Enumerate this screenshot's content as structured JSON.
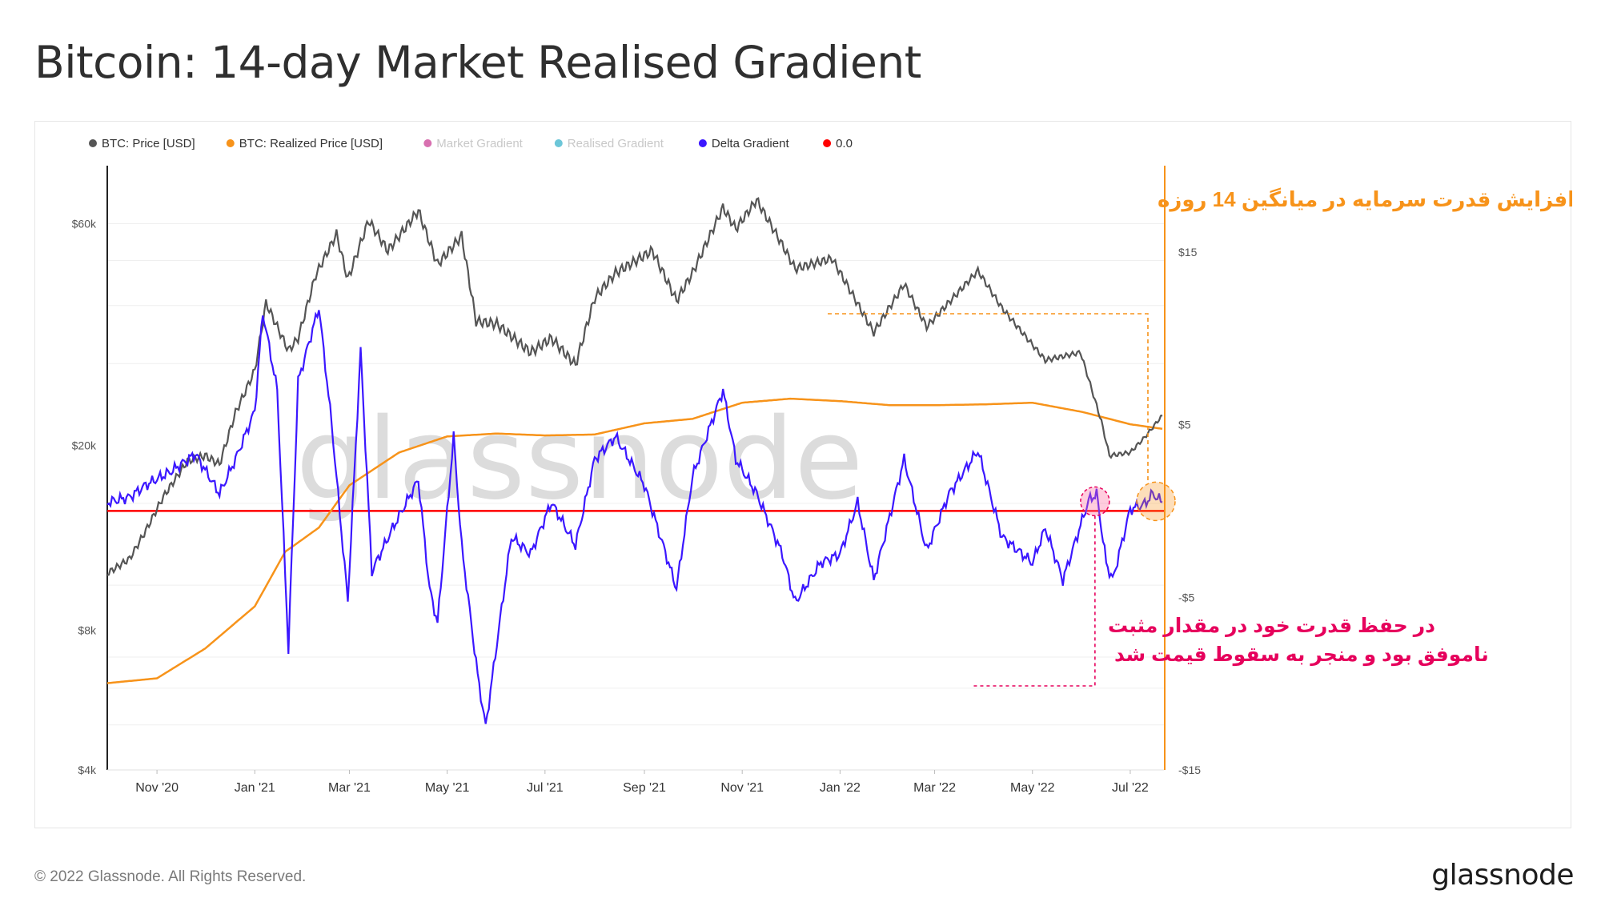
{
  "title": "Bitcoin: 14-day Market Realised Gradient",
  "footer": {
    "copyright": "© 2022 Glassnode. All Rights Reserved.",
    "logo": "glassnode"
  },
  "chart_data": {
    "type": "line",
    "title": "Bitcoin: 14-day Market Realised Gradient",
    "watermark": "glassnode",
    "legend": [
      {
        "name": "BTC: Price [USD]",
        "color": "#555555",
        "muted": false
      },
      {
        "name": "BTC: Realized Price [USD]",
        "color": "#f7931a",
        "muted": false
      },
      {
        "name": "Market Gradient",
        "color": "#d870b0",
        "muted": true
      },
      {
        "name": "Realised Gradient",
        "color": "#6cc6d8",
        "muted": true
      },
      {
        "name": "Delta Gradient",
        "color": "#3b17ff",
        "muted": false
      },
      {
        "name": "0.0",
        "color": "#ff0000",
        "muted": false
      }
    ],
    "x_range": [
      "2020-10-01",
      "2022-07-22"
    ],
    "x_ticks": [
      {
        "label": "Nov '20",
        "date": "2020-11-01"
      },
      {
        "label": "Jan '21",
        "date": "2021-01-01"
      },
      {
        "label": "Mar '21",
        "date": "2021-03-01"
      },
      {
        "label": "May '21",
        "date": "2021-05-01"
      },
      {
        "label": "Jul '21",
        "date": "2021-07-01"
      },
      {
        "label": "Sep '21",
        "date": "2021-09-01"
      },
      {
        "label": "Nov '21",
        "date": "2021-11-01"
      },
      {
        "label": "Jan '22",
        "date": "2022-01-01"
      },
      {
        "label": "Mar '22",
        "date": "2022-03-01"
      },
      {
        "label": "May '22",
        "date": "2022-05-01"
      },
      {
        "label": "Jul '22",
        "date": "2022-07-01"
      }
    ],
    "y_left": {
      "scale": "log",
      "range": [
        4000,
        80000
      ],
      "ticks": [
        {
          "label": "$4k",
          "value": 4000
        },
        {
          "label": "$8k",
          "value": 8000
        },
        {
          "label": "$20k",
          "value": 20000
        },
        {
          "label": "$60k",
          "value": 60000
        }
      ]
    },
    "y_right": {
      "scale": "linear",
      "range": [
        -15,
        20
      ],
      "ticks": [
        {
          "label": "$15",
          "value": 15
        },
        {
          "label": "$5",
          "value": 5
        },
        {
          "label": "-$5",
          "value": -5
        },
        {
          "label": "-$15",
          "value": -15
        }
      ]
    },
    "series": [
      {
        "name": "BTC: Price [USD]",
        "axis": "left",
        "points": [
          [
            "2020-10-01",
            10600
          ],
          [
            "2020-10-15",
            11400
          ],
          [
            "2020-10-25",
            13100
          ],
          [
            "2020-11-05",
            15500
          ],
          [
            "2020-11-20",
            18500
          ],
          [
            "2020-12-01",
            19000
          ],
          [
            "2020-12-10",
            18200
          ],
          [
            "2020-12-20",
            23500
          ],
          [
            "2021-01-01",
            29000
          ],
          [
            "2021-01-08",
            40500
          ],
          [
            "2021-01-15",
            36000
          ],
          [
            "2021-01-22",
            32000
          ],
          [
            "2021-01-28",
            34000
          ],
          [
            "2021-02-08",
            46500
          ],
          [
            "2021-02-21",
            57000
          ],
          [
            "2021-02-28",
            45500
          ],
          [
            "2021-03-13",
            61000
          ],
          [
            "2021-03-25",
            52500
          ],
          [
            "2021-04-13",
            64000
          ],
          [
            "2021-04-25",
            49000
          ],
          [
            "2021-05-10",
            56500
          ],
          [
            "2021-05-19",
            37000
          ],
          [
            "2021-06-01",
            36500
          ],
          [
            "2021-06-22",
            31700
          ],
          [
            "2021-07-05",
            34000
          ],
          [
            "2021-07-20",
            29800
          ],
          [
            "2021-08-01",
            41500
          ],
          [
            "2021-08-14",
            47000
          ],
          [
            "2021-09-06",
            52500
          ],
          [
            "2021-09-21",
            41000
          ],
          [
            "2021-10-01",
            47000
          ],
          [
            "2021-10-20",
            65000
          ],
          [
            "2021-10-28",
            58500
          ],
          [
            "2021-11-10",
            67500
          ],
          [
            "2021-11-26",
            54000
          ],
          [
            "2021-12-04",
            48000
          ],
          [
            "2021-12-27",
            50500
          ],
          [
            "2022-01-10",
            41500
          ],
          [
            "2022-01-22",
            35000
          ],
          [
            "2022-02-10",
            44500
          ],
          [
            "2022-02-24",
            36000
          ],
          [
            "2022-03-28",
            47500
          ],
          [
            "2022-04-12",
            39500
          ],
          [
            "2022-05-09",
            30500
          ],
          [
            "2022-05-31",
            31700
          ],
          [
            "2022-06-13",
            22500
          ],
          [
            "2022-06-18",
            19000
          ],
          [
            "2022-07-01",
            19300
          ],
          [
            "2022-07-10",
            20800
          ],
          [
            "2022-07-21",
            23200
          ]
        ]
      },
      {
        "name": "BTC: Realized Price [USD]",
        "axis": "left",
        "points": [
          [
            "2020-10-01",
            6150
          ],
          [
            "2020-11-01",
            6300
          ],
          [
            "2020-12-01",
            7300
          ],
          [
            "2021-01-01",
            9000
          ],
          [
            "2021-01-20",
            11800
          ],
          [
            "2021-02-10",
            13300
          ],
          [
            "2021-03-01",
            16400
          ],
          [
            "2021-04-01",
            19300
          ],
          [
            "2021-05-01",
            20900
          ],
          [
            "2021-06-01",
            21200
          ],
          [
            "2021-07-01",
            21000
          ],
          [
            "2021-08-01",
            21100
          ],
          [
            "2021-09-01",
            22300
          ],
          [
            "2021-10-01",
            22800
          ],
          [
            "2021-11-01",
            24700
          ],
          [
            "2021-12-01",
            25200
          ],
          [
            "2022-01-01",
            24900
          ],
          [
            "2022-02-01",
            24400
          ],
          [
            "2022-03-01",
            24400
          ],
          [
            "2022-04-01",
            24500
          ],
          [
            "2022-05-01",
            24700
          ],
          [
            "2022-06-01",
            23600
          ],
          [
            "2022-07-01",
            22200
          ],
          [
            "2022-07-21",
            21700
          ]
        ]
      },
      {
        "name": "Delta Gradient",
        "axis": "right",
        "points": [
          [
            "2020-10-01",
            0.5
          ],
          [
            "2020-10-15",
            0.8
          ],
          [
            "2020-10-25",
            1.5
          ],
          [
            "2020-11-10",
            2.3
          ],
          [
            "2020-11-25",
            3.3
          ],
          [
            "2020-12-10",
            1.0
          ],
          [
            "2020-12-20",
            3.0
          ],
          [
            "2021-01-01",
            5.8
          ],
          [
            "2021-01-06",
            11.5
          ],
          [
            "2021-01-15",
            7.0
          ],
          [
            "2021-01-22",
            -8.0
          ],
          [
            "2021-01-28",
            7.5
          ],
          [
            "2021-02-10",
            11.8
          ],
          [
            "2021-02-18",
            5.0
          ],
          [
            "2021-02-28",
            -5.2
          ],
          [
            "2021-03-08",
            9.3
          ],
          [
            "2021-03-15",
            -3.5
          ],
          [
            "2021-03-28",
            -1.0
          ],
          [
            "2021-04-13",
            1.8
          ],
          [
            "2021-04-20",
            -4.5
          ],
          [
            "2021-04-25",
            -6.5
          ],
          [
            "2021-05-05",
            4.3
          ],
          [
            "2021-05-10",
            -2.0
          ],
          [
            "2021-05-20",
            -9.5
          ],
          [
            "2021-05-25",
            -12.5
          ],
          [
            "2021-06-10",
            -1.5
          ],
          [
            "2021-06-22",
            -2.5
          ],
          [
            "2021-07-05",
            0.5
          ],
          [
            "2021-07-20",
            -2.0
          ],
          [
            "2021-08-01",
            3.0
          ],
          [
            "2021-08-14",
            4.3
          ],
          [
            "2021-09-01",
            1.5
          ],
          [
            "2021-09-21",
            -4.5
          ],
          [
            "2021-10-01",
            2.0
          ],
          [
            "2021-10-20",
            7.0
          ],
          [
            "2021-10-28",
            3.0
          ],
          [
            "2021-11-10",
            1.0
          ],
          [
            "2021-11-26",
            -2.5
          ],
          [
            "2021-12-04",
            -5.3
          ],
          [
            "2021-12-20",
            -3.0
          ],
          [
            "2022-01-01",
            -2.5
          ],
          [
            "2022-01-12",
            0.5
          ],
          [
            "2022-01-22",
            -4.0
          ],
          [
            "2022-02-10",
            3.0
          ],
          [
            "2022-02-24",
            -2.3
          ],
          [
            "2022-03-10",
            1.0
          ],
          [
            "2022-03-28",
            3.5
          ],
          [
            "2022-04-12",
            -1.5
          ],
          [
            "2022-05-01",
            -3.0
          ],
          [
            "2022-05-09",
            -1.0
          ],
          [
            "2022-05-20",
            -4.0
          ],
          [
            "2022-06-05",
            0.6
          ],
          [
            "2022-06-10",
            1.0
          ],
          [
            "2022-06-16",
            -3.0
          ],
          [
            "2022-06-20",
            -4.0
          ],
          [
            "2022-07-01",
            0.1
          ],
          [
            "2022-07-10",
            0.4
          ],
          [
            "2022-07-15",
            1.0
          ],
          [
            "2022-07-21",
            0.5
          ]
        ]
      }
    ],
    "reference_lines": [
      {
        "name": "0.0",
        "axis": "right",
        "value": 0.0
      }
    ],
    "annotations": {
      "top_note": "افزایش قدرت سرمایه در میانگین 14 روزه",
      "bottom_note_line1": "در حفظ قدرت خود در مقدار مثبت",
      "bottom_note_line2": "ناموفق بود و منجر به سقوط قیمت شد",
      "top_note_color": "#f7931a",
      "bottom_note_color": "#e6005c",
      "highlight_jun": "2022-06-09",
      "highlight_jul": "2022-07-17"
    }
  }
}
